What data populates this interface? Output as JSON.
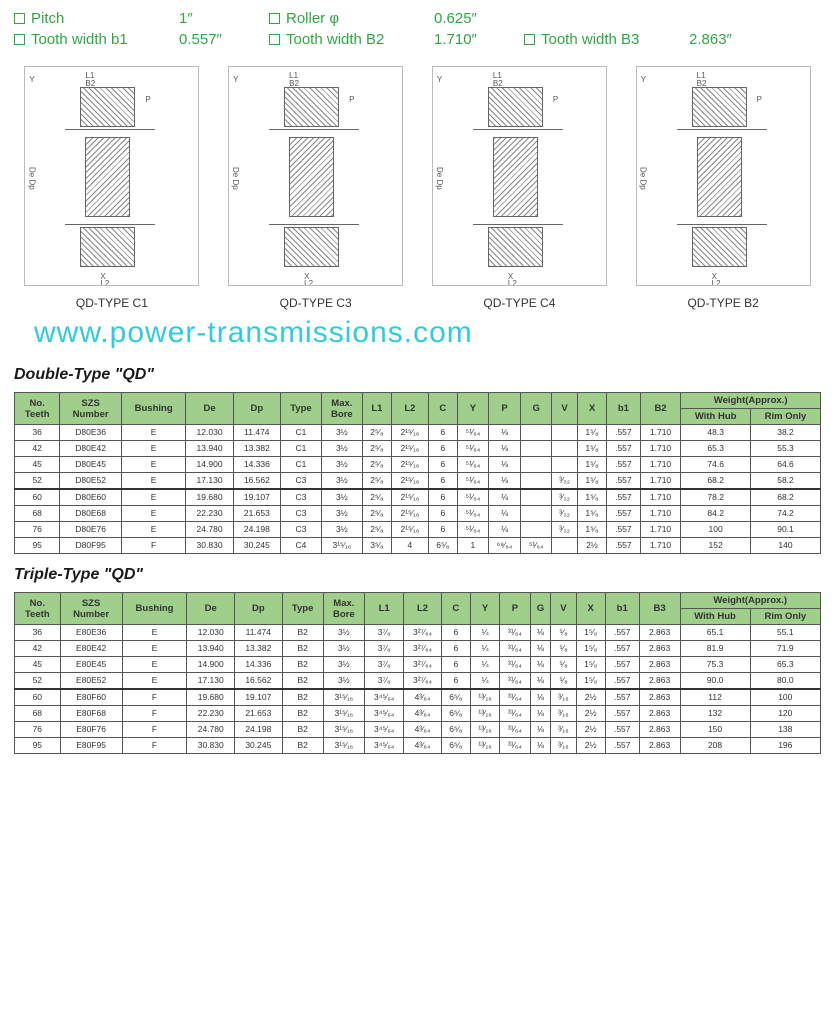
{
  "specs": [
    {
      "label": "Pitch",
      "value": "1″"
    },
    {
      "label": "Roller φ",
      "value": "0.625″"
    },
    {
      "label": "",
      "value": ""
    },
    {
      "label": "Tooth width b1",
      "value": "0.557″"
    },
    {
      "label": "Tooth width B2",
      "value": "1.710″"
    },
    {
      "label": "Tooth width B3",
      "value": "2.863″"
    }
  ],
  "diagrams": [
    "QD-TYPE C1",
    "QD-TYPE C3",
    "QD-TYPE C4",
    "QD-TYPE B2"
  ],
  "watermark": "www.power-transmissions.com",
  "table1": {
    "title": "Double-Type \"QD\"",
    "headers": [
      "No. Teeth",
      "SZS Number",
      "Bushing",
      "De",
      "Dp",
      "Type",
      "Max. Bore",
      "L1",
      "L2",
      "C",
      "Y",
      "P",
      "G",
      "V",
      "X",
      "b1",
      "B2",
      "With Hub",
      "Rim Only"
    ],
    "weightHeader": "Weight(Approx.)",
    "rows": [
      [
        "36",
        "D80E36",
        "E",
        "12.030",
        "11.474",
        "C1",
        "3½",
        "2⁵⁄₈",
        "2¹⁵⁄₁₆",
        "6",
        "⁵¹⁄₆₄",
        "⅛",
        "",
        "",
        "1⁵⁄₈",
        ".557",
        "1.710",
        "48.3",
        "38.2"
      ],
      [
        "42",
        "D80E42",
        "E",
        "13.940",
        "13.382",
        "C1",
        "3½",
        "2⁵⁄₈",
        "2¹⁵⁄₁₆",
        "6",
        "⁵¹⁄₆₄",
        "⅛",
        "",
        "",
        "1⁵⁄₈",
        ".557",
        "1.710",
        "65.3",
        "55.3"
      ],
      [
        "45",
        "D80E45",
        "E",
        "14.900",
        "14.336",
        "C1",
        "3½",
        "2⁵⁄₈",
        "2¹⁵⁄₁₆",
        "6",
        "⁵¹⁄₆₄",
        "⅛",
        "",
        "",
        "1⁵⁄₈",
        ".557",
        "1.710",
        "74.6",
        "64.6"
      ],
      [
        "52",
        "D80E52",
        "E",
        "17.130",
        "16.562",
        "C3",
        "3½",
        "2⁵⁄₈",
        "2¹⁵⁄₁₆",
        "6",
        "⁵¹⁄₆₄",
        "⅛",
        "",
        "³⁄₃₂",
        "1⁵⁄₈",
        ".557",
        "1.710",
        "68.2",
        "58.2"
      ],
      [
        "60",
        "D80E60",
        "E",
        "19.680",
        "19.107",
        "C3",
        "3½",
        "2⁵⁄₈",
        "2¹⁵⁄₁₆",
        "6",
        "⁵¹⁄₆₄",
        "⅛",
        "",
        "³⁄₃₂",
        "1⁵⁄₈",
        ".557",
        "1.710",
        "78.2",
        "68.2"
      ],
      [
        "68",
        "D80E68",
        "E",
        "22.230",
        "21.653",
        "C3",
        "3½",
        "2⁵⁄₈",
        "2¹⁵⁄₁₆",
        "6",
        "⁵¹⁄₆₄",
        "⅛",
        "",
        "³⁄₃₂",
        "1⁵⁄₈",
        ".557",
        "1.710",
        "84.2",
        "74.2"
      ],
      [
        "76",
        "D80E76",
        "E",
        "24.780",
        "24.198",
        "C3",
        "3½",
        "2⁵⁄₈",
        "2¹⁵⁄₁₆",
        "6",
        "⁵¹⁄₆₄",
        "⅛",
        "",
        "³⁄₃₂",
        "1⁵⁄₈",
        ".557",
        "1.710",
        "100",
        "90.1"
      ],
      [
        "95",
        "D80F95",
        "F",
        "30.830",
        "30.245",
        "C4",
        "3¹⁵⁄₁₆",
        "3⁵⁄₈",
        "4",
        "6⁵⁄₈",
        "1",
        "⁶⁹⁄₆₄",
        "⁵¹⁄₆₄",
        "",
        "2½",
        ".557",
        "1.710",
        "152",
        "140"
      ]
    ],
    "midSep": 4
  },
  "table2": {
    "title": "Triple-Type \"QD\"",
    "headers": [
      "No. Teeth",
      "SZS Number",
      "Bushing",
      "De",
      "Dp",
      "Type",
      "Max. Bore",
      "L1",
      "L2",
      "C",
      "Y",
      "P",
      "G",
      "V",
      "X",
      "b1",
      "B3",
      "With Hub",
      "Rim Only"
    ],
    "weightHeader": "Weight(Approx.)",
    "rows": [
      [
        "36",
        "E80E36",
        "E",
        "12.030",
        "11.474",
        "B2",
        "3½",
        "3⁷⁄₈",
        "3²⁷⁄₆₄",
        "6",
        "¼",
        "³¹⁄₆₄",
        "⅛",
        "⁵⁄₈",
        "1⁵⁄₈",
        ".557",
        "2.863",
        "65.1",
        "55.1"
      ],
      [
        "42",
        "E80E42",
        "E",
        "13.940",
        "13.382",
        "B2",
        "3½",
        "3⁷⁄₈",
        "3²⁷⁄₆₄",
        "6",
        "¼",
        "³¹⁄₆₄",
        "⅛",
        "⁵⁄₈",
        "1⁵⁄₈",
        ".557",
        "2.863",
        "81.9",
        "71.9"
      ],
      [
        "45",
        "E80E45",
        "E",
        "14.900",
        "14.336",
        "B2",
        "3½",
        "3⁷⁄₈",
        "3²⁷⁄₆₄",
        "6",
        "¼",
        "³¹⁄₆₄",
        "⅛",
        "⁵⁄₈",
        "1⁵⁄₈",
        ".557",
        "2.863",
        "75.3",
        "65.3"
      ],
      [
        "52",
        "E80E52",
        "E",
        "17.130",
        "16.562",
        "B2",
        "3½",
        "3⁷⁄₈",
        "3²⁷⁄₆₄",
        "6",
        "¼",
        "³¹⁄₆₄",
        "⅛",
        "⁵⁄₈",
        "1⁵⁄₈",
        ".557",
        "2.863",
        "90.0",
        "80.0"
      ],
      [
        "60",
        "E80F60",
        "F",
        "19.680",
        "19.107",
        "B2",
        "3¹⁵⁄₁₆",
        "3⁴⁵⁄₆₄",
        "4³⁄₆₄",
        "6⁵⁄₈",
        "¹³⁄₁₆",
        "³¹⁄₆₄",
        "⅛",
        "³⁄₁₆",
        "2½",
        ".557",
        "2.863",
        "112",
        "100"
      ],
      [
        "68",
        "E80F68",
        "F",
        "22.230",
        "21.653",
        "B2",
        "3¹⁵⁄₁₆",
        "3⁴⁵⁄₆₄",
        "4³⁄₆₄",
        "6⁵⁄₈",
        "¹³⁄₁₆",
        "³¹⁄₆₄",
        "⅛",
        "³⁄₁₆",
        "2½",
        ".557",
        "2.863",
        "132",
        "120"
      ],
      [
        "76",
        "E80F76",
        "F",
        "24.780",
        "24.198",
        "B2",
        "3¹⁵⁄₁₆",
        "3⁴⁵⁄₆₄",
        "4³⁄₆₄",
        "6⁵⁄₈",
        "¹³⁄₁₆",
        "³¹⁄₆₄",
        "⅛",
        "³⁄₁₆",
        "2½",
        ".557",
        "2.863",
        "150",
        "138"
      ],
      [
        "95",
        "E80F95",
        "F",
        "30.830",
        "30.245",
        "B2",
        "3¹⁵⁄₁₆",
        "3⁴⁵⁄₆₄",
        "4³⁄₆₄",
        "6⁵⁄₈",
        "¹³⁄₁₆",
        "³¹⁄₆₄",
        "⅛",
        "³⁄₁₆",
        "2½",
        ".557",
        "2.863",
        "208",
        "196"
      ]
    ],
    "midSep": 4
  },
  "colors": {
    "green": "#2ea843",
    "header": "#9fcf8a",
    "wm": "#1ec8d8"
  }
}
